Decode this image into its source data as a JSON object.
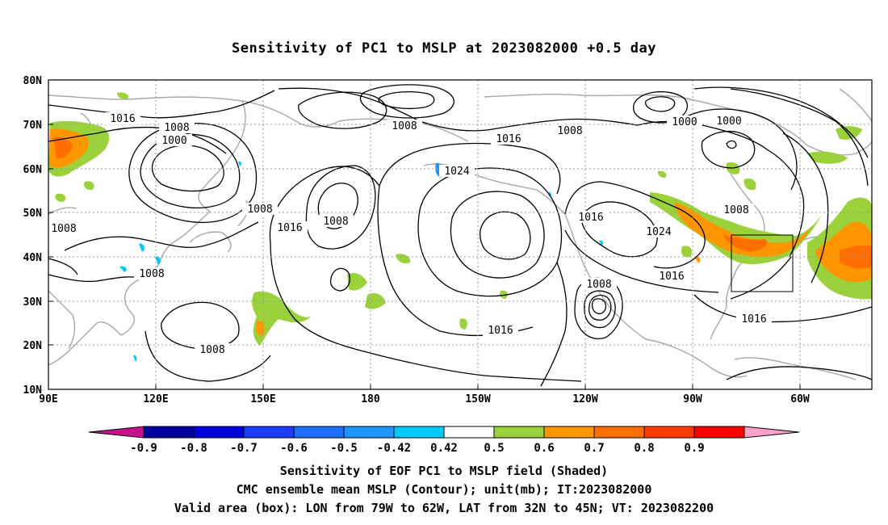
{
  "title": "Sensitivity of PC1 to MSLP at 2023082000 +0.5 day",
  "map": {
    "lat_labels": [
      "80N",
      "70N",
      "60N",
      "50N",
      "40N",
      "30N",
      "20N",
      "10N"
    ],
    "lon_labels": [
      "90E",
      "120E",
      "150E",
      "180",
      "150W",
      "120W",
      "90W",
      "60W"
    ],
    "contour_labels": [
      {
        "text": "1016"
      },
      {
        "text": "1008"
      },
      {
        "text": "1000"
      },
      {
        "text": "1008"
      },
      {
        "text": "1016"
      },
      {
        "text": "1008"
      },
      {
        "text": "1008"
      },
      {
        "text": "1008"
      },
      {
        "text": "1008"
      },
      {
        "text": "1024"
      },
      {
        "text": "1016"
      },
      {
        "text": "1008"
      },
      {
        "text": "1016"
      },
      {
        "text": "1024"
      },
      {
        "text": "1000"
      },
      {
        "text": "1000"
      },
      {
        "text": "1008"
      },
      {
        "text": "1016"
      },
      {
        "text": "1008"
      },
      {
        "text": "1016"
      },
      {
        "text": "1016"
      },
      {
        "text": "1008"
      }
    ],
    "valid_box": {
      "lon_west": "79W",
      "lon_east": "62W",
      "lat_south": "32N",
      "lat_north": "45N"
    }
  },
  "colorbar": {
    "labels": [
      "-0.9",
      "-0.8",
      "-0.7",
      "-0.6",
      "-0.5",
      "-0.42",
      "0.42",
      "0.5",
      "0.6",
      "0.7",
      "0.8",
      "0.9"
    ],
    "colors": [
      "#0000a0",
      "#0000dc",
      "#1e3cff",
      "#1e6eff",
      "#1e96ff",
      "#00c8ff",
      "#ffffff",
      "#9bd23c",
      "#ff9600",
      "#ff6e00",
      "#ff3c00",
      "#ff0000"
    ],
    "low_triangle_color": "#c8148c",
    "high_triangle_color": "#ffa0c8"
  },
  "captions": {
    "line1": "Sensitivity of EOF PC1 to MSLP field (Shaded)",
    "line2": "CMC ensemble mean MSLP (Contour); unit(mb); IT:2023082000",
    "line3": "Valid area (box): LON from 79W to 62W, LAT from 32N to 45N; VT: 2023082200"
  }
}
